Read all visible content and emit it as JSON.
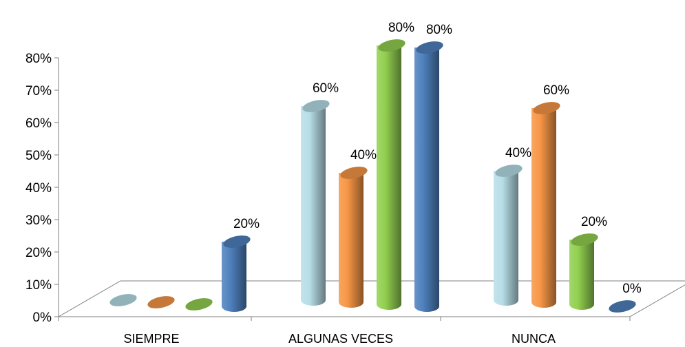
{
  "chart_data": {
    "type": "bar",
    "style": "3d-cylinder",
    "categories": [
      "SIEMPRE",
      "ALGUNAS VECES",
      "NUNCA"
    ],
    "series": [
      {
        "values": [
          0,
          60,
          40
        ],
        "color": "#B7DEE8",
        "labels": [
          "",
          "60%",
          "40%"
        ]
      },
      {
        "values": [
          0,
          40,
          60
        ],
        "color": "#F79646",
        "labels": [
          "",
          "40%",
          "60%"
        ]
      },
      {
        "values": [
          0,
          80,
          20
        ],
        "color": "#92D050",
        "labels": [
          "",
          "80%",
          "20%"
        ]
      },
      {
        "values": [
          20,
          80,
          0
        ],
        "color": "#4F81BD",
        "labels": [
          "20%",
          "80%",
          "0%"
        ]
      }
    ],
    "y_ticks": [
      "0%",
      "10%",
      "20%",
      "30%",
      "40%",
      "50%",
      "60%",
      "70%",
      "80%"
    ],
    "ylim": [
      0,
      80
    ],
    "grid": false,
    "legend": "none"
  }
}
